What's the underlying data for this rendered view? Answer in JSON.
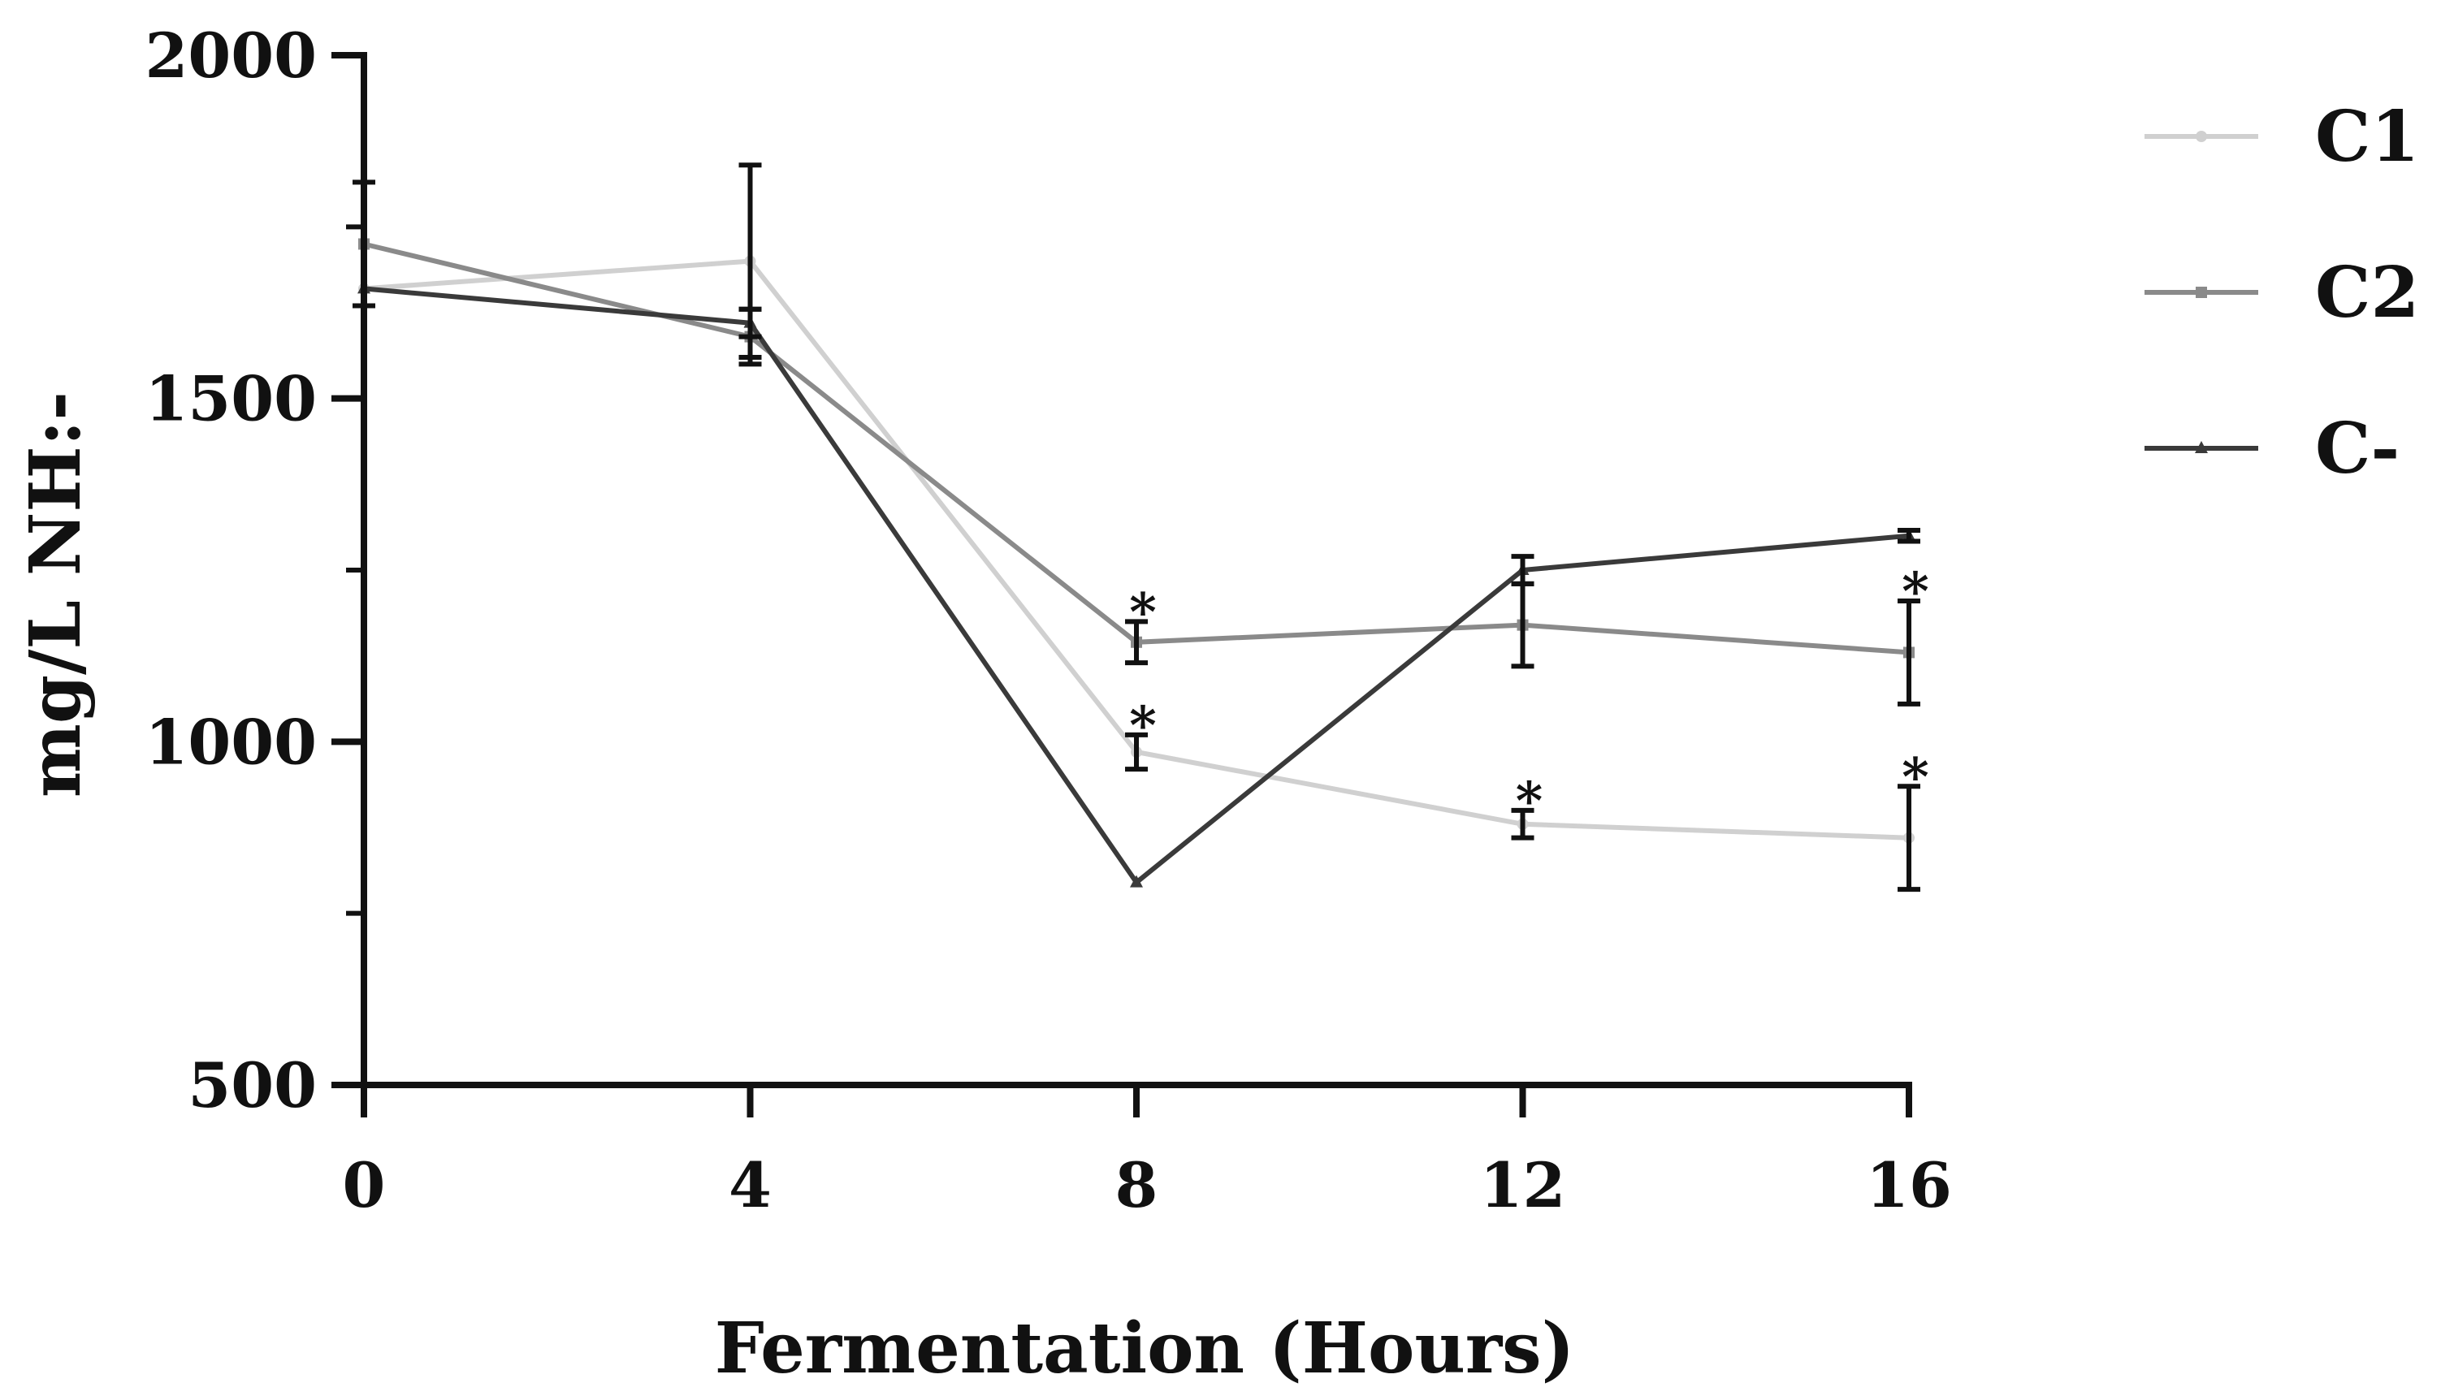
{
  "chart_data": {
    "type": "line",
    "title": "",
    "xlabel": "Fermentation (Hours)",
    "ylabel": "mg/L NH:-",
    "x": [
      0,
      4,
      8,
      12,
      16
    ],
    "x_ticks": [
      "0",
      "4",
      "8",
      "12",
      "16"
    ],
    "y_ticks": [
      "500",
      "1000",
      "1500",
      "2000"
    ],
    "xlim": [
      0,
      16
    ],
    "ylim": [
      500,
      2000
    ],
    "legend_position": "top-right",
    "series": [
      {
        "name": "C1",
        "color": "#d0d0d0",
        "marker": "circle",
        "values": [
          1660,
          1700,
          985,
          880,
          860
        ],
        "errors": [
          0,
          140,
          25,
          20,
          75
        ],
        "significant": [
          false,
          false,
          true,
          true,
          true
        ]
      },
      {
        "name": "C2",
        "color": "#8a8a8a",
        "marker": "square",
        "values": [
          1725,
          1590,
          1145,
          1170,
          1130
        ],
        "errors": [
          90,
          40,
          30,
          60,
          75
        ],
        "significant": [
          false,
          false,
          true,
          false,
          true
        ]
      },
      {
        "name": "C-",
        "color": "#3a3a3a",
        "marker": "triangle",
        "values": [
          1660,
          1610,
          795,
          1250,
          1300
        ],
        "errors": [
          0,
          20,
          0,
          20,
          8
        ],
        "significant": [
          false,
          false,
          false,
          false,
          false
        ]
      }
    ],
    "significance_marker": "*"
  }
}
